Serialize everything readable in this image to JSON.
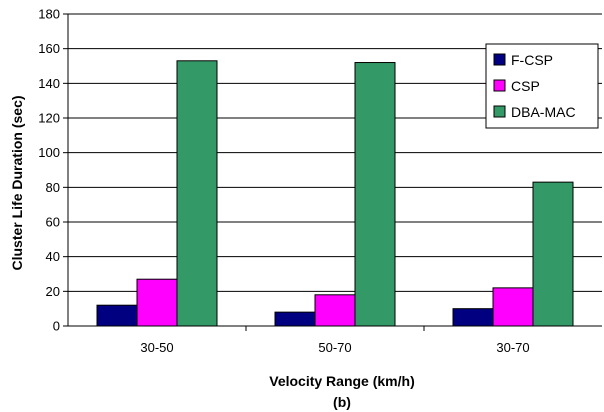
{
  "chart_data": {
    "type": "bar",
    "title": "",
    "caption": "(b)",
    "xlabel": "Velocity Range (km/h)",
    "ylabel": "Cluster Life Duration (sec)",
    "ylim": [
      0,
      180
    ],
    "yticks": [
      "0",
      "20",
      "40",
      "60",
      "80",
      "100",
      "120",
      "140",
      "160",
      "180"
    ],
    "grid": true,
    "legend_position": "top-right",
    "categories": [
      "30-50",
      "50-70",
      "30-70"
    ],
    "series": [
      {
        "name": "F-CSP",
        "color": "#000080",
        "values": [
          12,
          8,
          10
        ]
      },
      {
        "name": "CSP",
        "color": "#ff00ff",
        "values": [
          27,
          18,
          22
        ]
      },
      {
        "name": "DBA-MAC",
        "color": "#339966",
        "values": [
          153,
          152,
          83
        ]
      }
    ]
  }
}
